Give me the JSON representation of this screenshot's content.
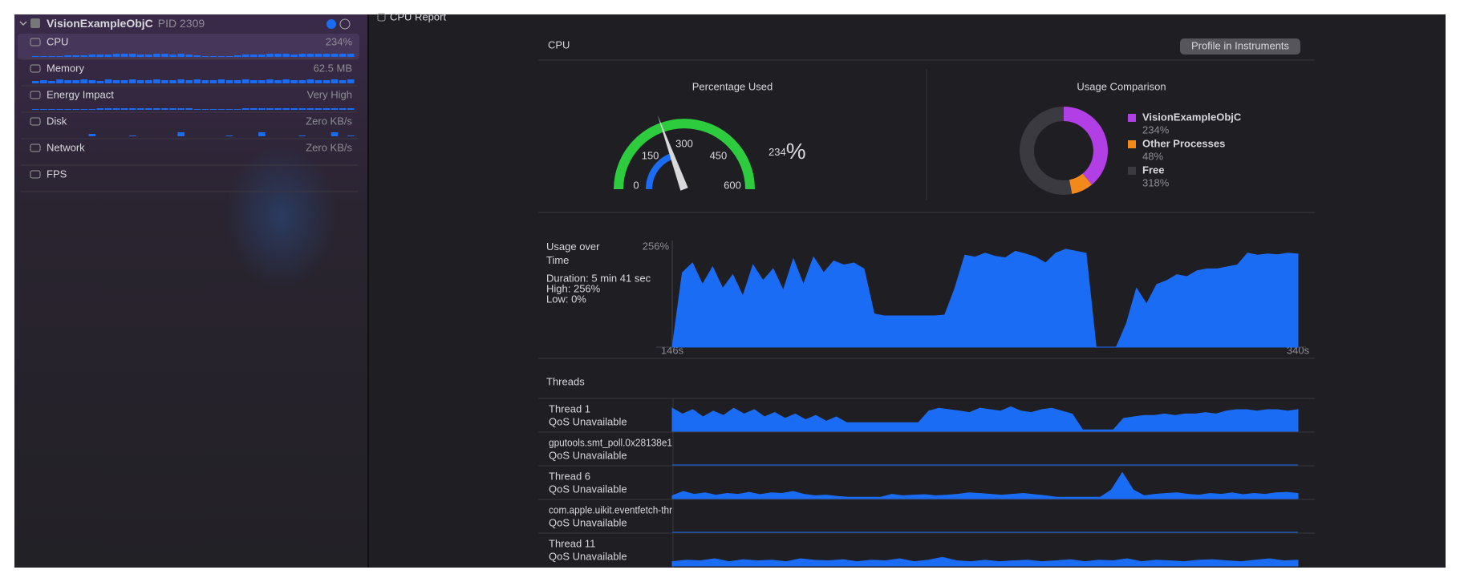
{
  "sidebar": {
    "app": "VisionExampleObjC",
    "pid": "PID 2309",
    "ylim": [
      0,
      10
    ],
    "rows": [
      {
        "label": "CPU",
        "value": "234%",
        "spark": [
          1,
          1,
          1,
          1,
          2,
          2,
          2,
          3,
          3,
          3,
          4,
          4,
          4,
          3,
          3,
          4,
          4,
          3,
          4,
          3,
          2,
          1,
          1,
          1,
          1,
          2,
          3,
          3,
          3,
          4,
          4,
          4,
          3,
          4,
          4,
          4,
          4,
          4,
          4,
          4
        ]
      },
      {
        "label": "Memory",
        "value": "62.5 MB",
        "spark": [
          3,
          4,
          3,
          5,
          4,
          4,
          5,
          4,
          3,
          5,
          4,
          4,
          5,
          4,
          4,
          5,
          4,
          4,
          5,
          4,
          5,
          4,
          4,
          5,
          4,
          4,
          5,
          4,
          4,
          5,
          4,
          5,
          4,
          4,
          5,
          4,
          4,
          5,
          4,
          5
        ]
      },
      {
        "label": "Energy Impact",
        "value": "Very High",
        "spark": [
          1,
          1,
          1,
          1,
          1,
          1,
          1,
          1,
          2,
          2,
          2,
          2,
          2,
          2,
          2,
          2,
          2,
          2,
          2,
          2,
          1,
          1,
          1,
          1,
          1,
          1,
          2,
          2,
          2,
          2,
          2,
          2,
          2,
          2,
          2,
          2,
          2,
          2,
          2,
          2
        ]
      },
      {
        "label": "Disk",
        "value": "Zero KB/s",
        "spark": [
          0,
          0,
          0,
          0,
          0,
          0,
          0,
          3,
          0,
          0,
          0,
          0,
          1,
          0,
          0,
          0,
          0,
          0,
          5,
          0,
          0,
          0,
          0,
          0,
          1,
          0,
          0,
          0,
          5,
          0,
          0,
          0,
          0,
          1,
          0,
          0,
          0,
          5,
          0,
          1
        ]
      },
      {
        "label": "Network",
        "value": "Zero KB/s"
      },
      {
        "label": "FPS"
      }
    ]
  },
  "header": {
    "title": "CPU Report"
  },
  "report": {
    "title": "CPU",
    "button": "Profile in Instruments",
    "gauge": {
      "title": "Percentage Used",
      "value": 234,
      "unit": "%",
      "min": 0,
      "max": 600,
      "ticks": [
        0,
        150,
        300,
        450,
        600
      ]
    },
    "comparison": {
      "title": "Usage Comparison",
      "series": [
        {
          "name": "VisionExampleObjC",
          "color": "#b23fe6",
          "value": 234,
          "value_label": "234%"
        },
        {
          "name": "Other Processes",
          "color": "#f28a1b",
          "value": 48,
          "value_label": "48%"
        },
        {
          "name": "Free",
          "color": "#3b3a40",
          "value": 318,
          "value_label": "318%"
        }
      ]
    },
    "usage": {
      "title_lines": [
        "Usage over",
        "Time"
      ],
      "details": [
        "Duration: 5 min 41 sec",
        "High: 256%",
        "Low: 0%"
      ],
      "color": "#1a6cf5",
      "ylim": [
        0,
        256
      ],
      "yticks": [
        {
          "value": 256,
          "label": "256%"
        }
      ],
      "xlim": [
        146,
        340
      ],
      "xticks": [
        {
          "value": 146,
          "label": "146s"
        },
        {
          "value": 340,
          "label": "340s"
        }
      ],
      "values": [
        0,
        190,
        215,
        160,
        205,
        150,
        185,
        130,
        210,
        170,
        200,
        145,
        225,
        160,
        230,
        190,
        220,
        210,
        215,
        200,
        85,
        80,
        80,
        80,
        80,
        80,
        80,
        82,
        150,
        235,
        230,
        240,
        232,
        228,
        245,
        238,
        230,
        215,
        240,
        250,
        245,
        240,
        0,
        0,
        0,
        60,
        150,
        110,
        160,
        170,
        185,
        180,
        195,
        200,
        200,
        205,
        210,
        240,
        235,
        238,
        236,
        240,
        238
      ]
    },
    "threads": {
      "title": "Threads",
      "ylim": [
        0,
        100
      ],
      "rows": [
        {
          "name": "Thread 1",
          "qos": "QoS Unavailable",
          "values": [
            80,
            60,
            75,
            50,
            70,
            55,
            80,
            60,
            75,
            50,
            65,
            45,
            60,
            40,
            55,
            35,
            50,
            30,
            30,
            30,
            30,
            30,
            30,
            30,
            30,
            70,
            80,
            75,
            70,
            65,
            80,
            75,
            70,
            85,
            70,
            65,
            75,
            80,
            70,
            60,
            5,
            5,
            5,
            5,
            45,
            50,
            55,
            55,
            60,
            55,
            60,
            60,
            65,
            60,
            70,
            75,
            75,
            70,
            75,
            75,
            70,
            75
          ]
        },
        {
          "name": "gputools.smt_poll.0x28138e1",
          "qos": "QoS Unavailable",
          "values": [
            0,
            0,
            0,
            0,
            0,
            0,
            0,
            0,
            0,
            0,
            0,
            0,
            0,
            0,
            0,
            0,
            0,
            0,
            0,
            0
          ]
        },
        {
          "name": "Thread 6",
          "qos": "QoS Unavailable",
          "values": [
            10,
            25,
            15,
            20,
            12,
            18,
            15,
            22,
            14,
            20,
            18,
            25,
            15,
            10,
            12,
            8,
            5,
            5,
            5,
            5,
            15,
            10,
            12,
            14,
            10,
            12,
            15,
            20,
            18,
            15,
            12,
            15,
            18,
            14,
            10,
            5,
            5,
            5,
            5,
            5,
            30,
            90,
            30,
            10,
            15,
            18,
            20,
            15,
            12,
            18,
            15,
            20,
            14,
            18,
            15,
            20,
            22,
            18
          ]
        },
        {
          "name": "com.apple.uikit.eventfetch-thr",
          "qos": "QoS Unavailable",
          "values": [
            0,
            0,
            0,
            0,
            0,
            0,
            0,
            0,
            0,
            0,
            0,
            0,
            0,
            0,
            0,
            0,
            0,
            0,
            0,
            0
          ]
        },
        {
          "name": "Thread 11",
          "qos": "QoS Unavailable",
          "values": [
            15,
            20,
            18,
            25,
            15,
            22,
            18,
            20,
            15,
            25,
            20,
            18,
            22,
            15,
            20,
            18,
            25,
            15,
            20,
            30,
            18,
            15,
            20,
            15,
            18,
            20,
            15,
            18,
            22,
            15,
            20,
            18,
            25,
            15,
            20,
            18,
            15,
            20,
            22,
            18,
            15,
            20,
            25,
            18,
            20
          ]
        }
      ]
    }
  }
}
